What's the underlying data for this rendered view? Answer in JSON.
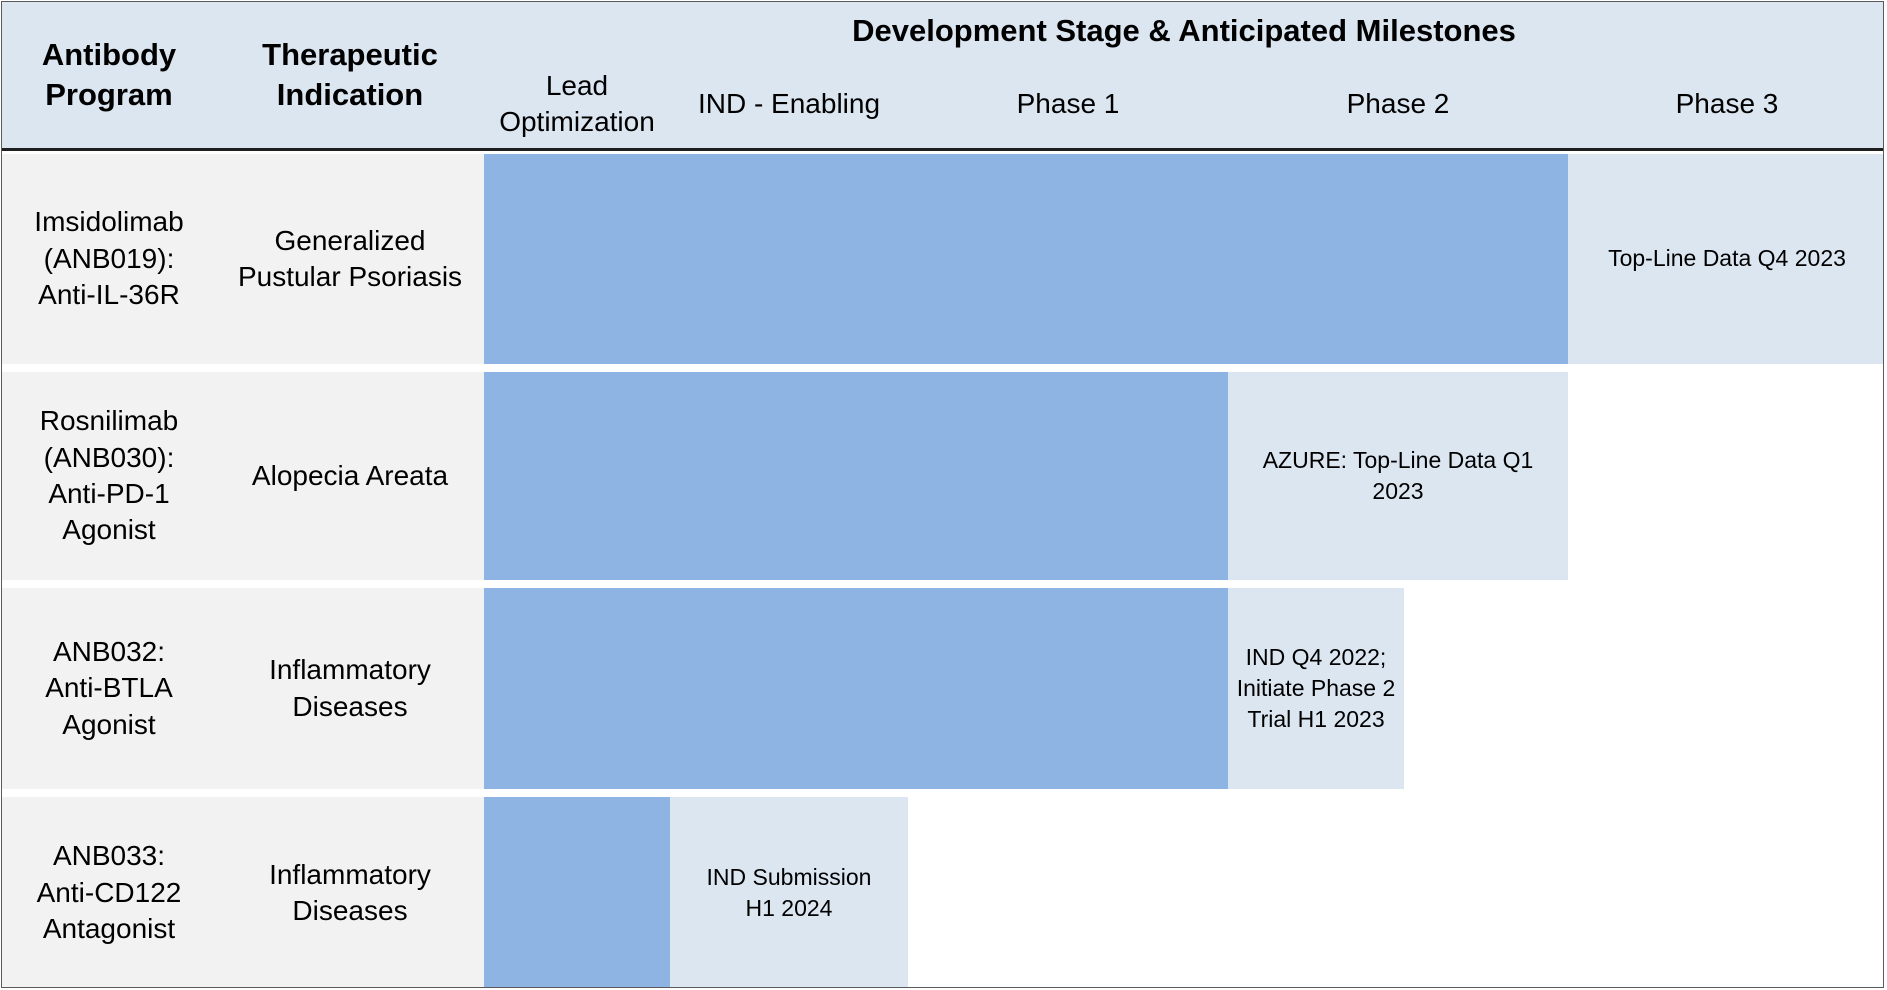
{
  "header": {
    "program_label": "Antibody\nProgram",
    "indication_label": "Therapeutic\nIndication",
    "stages_title": "Development Stage & Anticipated Milestones",
    "stages": [
      "Lead\nOptimization",
      "IND - Enabling",
      "Phase 1",
      "Phase 2",
      "Phase 3"
    ]
  },
  "colors": {
    "header_bg": "#dce6f1",
    "row_bg": "#f2f2f2",
    "progress_bar": "#8eb4e3",
    "milestone_bg": "#dce6f1"
  },
  "programs": [
    {
      "program": "Imsidolimab\n(ANB019):\nAnti-IL-36R",
      "indication": "Generalized\nPustular Psoriasis",
      "milestone": "Top-Line Data Q4 2023"
    },
    {
      "program": "Rosnilimab\n(ANB030):\nAnti-PD-1\nAgonist",
      "indication": "Alopecia Areata",
      "milestone": "AZURE: Top-Line Data Q1\n2023"
    },
    {
      "program": "ANB032:\nAnti-BTLA\nAgonist",
      "indication": "Inflammatory\nDiseases",
      "milestone": "IND Q4 2022;\nInitiate Phase 2\nTrial H1 2023"
    },
    {
      "program": "ANB033:\nAnti-CD122\nAntagonist",
      "indication": "Inflammatory\nDiseases",
      "milestone": "IND Submission\nH1 2024"
    }
  ]
}
